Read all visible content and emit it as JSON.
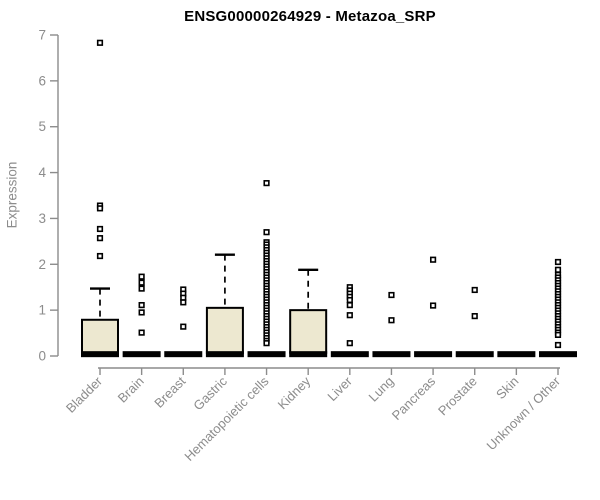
{
  "title": "ENSG00000264929 - Metazoa_SRP",
  "chart_data": {
    "type": "boxplot",
    "title": "ENSG00000264929 - Metazoa_SRP",
    "xlabel": "",
    "ylabel": "Expression",
    "ylim": [
      0,
      7
    ],
    "yticks": [
      0,
      1,
      2,
      3,
      4,
      5,
      6,
      7
    ],
    "grid": false,
    "legend": "none",
    "categories": [
      "Bladder",
      "Brain",
      "Breast",
      "Gastric",
      "Hematopoietic cells",
      "Kidney",
      "Liver",
      "Lung",
      "Pancreas",
      "Prostate",
      "Skin",
      "Unknown / Other"
    ],
    "colors": {
      "box_fill": "#ede8d0",
      "box_stroke": "#000000",
      "median": "#000000",
      "outlier_stroke": "#000000",
      "outlier_fill": "#ffffff",
      "axis": "#8c8c8c",
      "tick_label": "#8c8c8c",
      "title": "#000000"
    },
    "series": [
      {
        "name": "Bladder",
        "q1": 0.07,
        "median": 0.04,
        "q3": 0.79,
        "whisker_low": null,
        "whisker_high": 1.47,
        "outliers": [
          6.83,
          3.28,
          3.22,
          2.77,
          2.57,
          2.18
        ]
      },
      {
        "name": "Brain",
        "q1": 0,
        "median": 0.04,
        "q3": 0.08,
        "whisker_low": null,
        "whisker_high": null,
        "outliers": [
          1.73,
          1.6,
          1.47,
          1.11,
          0.95,
          0.51
        ]
      },
      {
        "name": "Breast",
        "q1": 0,
        "median": 0.04,
        "q3": 0.08,
        "whisker_low": null,
        "whisker_high": null,
        "outliers": [
          1.45,
          1.36,
          1.27,
          1.17,
          0.64
        ]
      },
      {
        "name": "Gastric",
        "q1": 0.07,
        "median": 0.04,
        "q3": 1.05,
        "whisker_low": null,
        "whisker_high": 2.21,
        "outliers": []
      },
      {
        "name": "Hematopoietic cells",
        "q1": 0,
        "median": 0.04,
        "q3": 0.08,
        "whisker_low": null,
        "whisker_high": null,
        "outliers": [
          3.77,
          2.7,
          2.48,
          2.43,
          2.37,
          2.31,
          2.25,
          2.19,
          2.13,
          2.07,
          2.01,
          1.95,
          1.89,
          1.83,
          1.77,
          1.71,
          1.65,
          1.59,
          1.53,
          1.47,
          1.41,
          1.35,
          1.29,
          1.23,
          1.17,
          1.11,
          1.05,
          0.99,
          0.93,
          0.87,
          0.81,
          0.75,
          0.69,
          0.63,
          0.57,
          0.51,
          0.45,
          0.39,
          0.33,
          0.28
        ]
      },
      {
        "name": "Kidney",
        "q1": 0.07,
        "median": 0.04,
        "q3": 1.0,
        "whisker_low": null,
        "whisker_high": 1.88,
        "outliers": []
      },
      {
        "name": "Liver",
        "q1": 0,
        "median": 0.04,
        "q3": 0.08,
        "whisker_low": null,
        "whisker_high": null,
        "outliers": [
          1.5,
          1.43,
          1.36,
          1.29,
          1.22,
          1.11,
          0.89,
          0.28
        ]
      },
      {
        "name": "Lung",
        "q1": 0,
        "median": 0.04,
        "q3": 0.08,
        "whisker_low": null,
        "whisker_high": null,
        "outliers": [
          1.33,
          0.78
        ]
      },
      {
        "name": "Pancreas",
        "q1": 0,
        "median": 0.04,
        "q3": 0.08,
        "whisker_low": null,
        "whisker_high": null,
        "outliers": [
          2.1,
          1.1
        ]
      },
      {
        "name": "Prostate",
        "q1": 0,
        "median": 0.04,
        "q3": 0.08,
        "whisker_low": null,
        "whisker_high": null,
        "outliers": [
          1.44,
          0.87
        ]
      },
      {
        "name": "Skin",
        "q1": 0,
        "median": 0.04,
        "q3": 0.08,
        "whisker_low": null,
        "whisker_high": null,
        "outliers": []
      },
      {
        "name": "Unknown / Other",
        "q1": 0,
        "median": 0.04,
        "q3": 0.08,
        "whisker_low": null,
        "whisker_high": null,
        "outliers": [
          2.05,
          1.88,
          1.77,
          1.71,
          1.65,
          1.59,
          1.53,
          1.47,
          1.41,
          1.35,
          1.29,
          1.23,
          1.17,
          1.11,
          1.05,
          0.99,
          0.93,
          0.87,
          0.81,
          0.75,
          0.69,
          0.63,
          0.57,
          0.51,
          0.46,
          0.24
        ]
      }
    ]
  }
}
